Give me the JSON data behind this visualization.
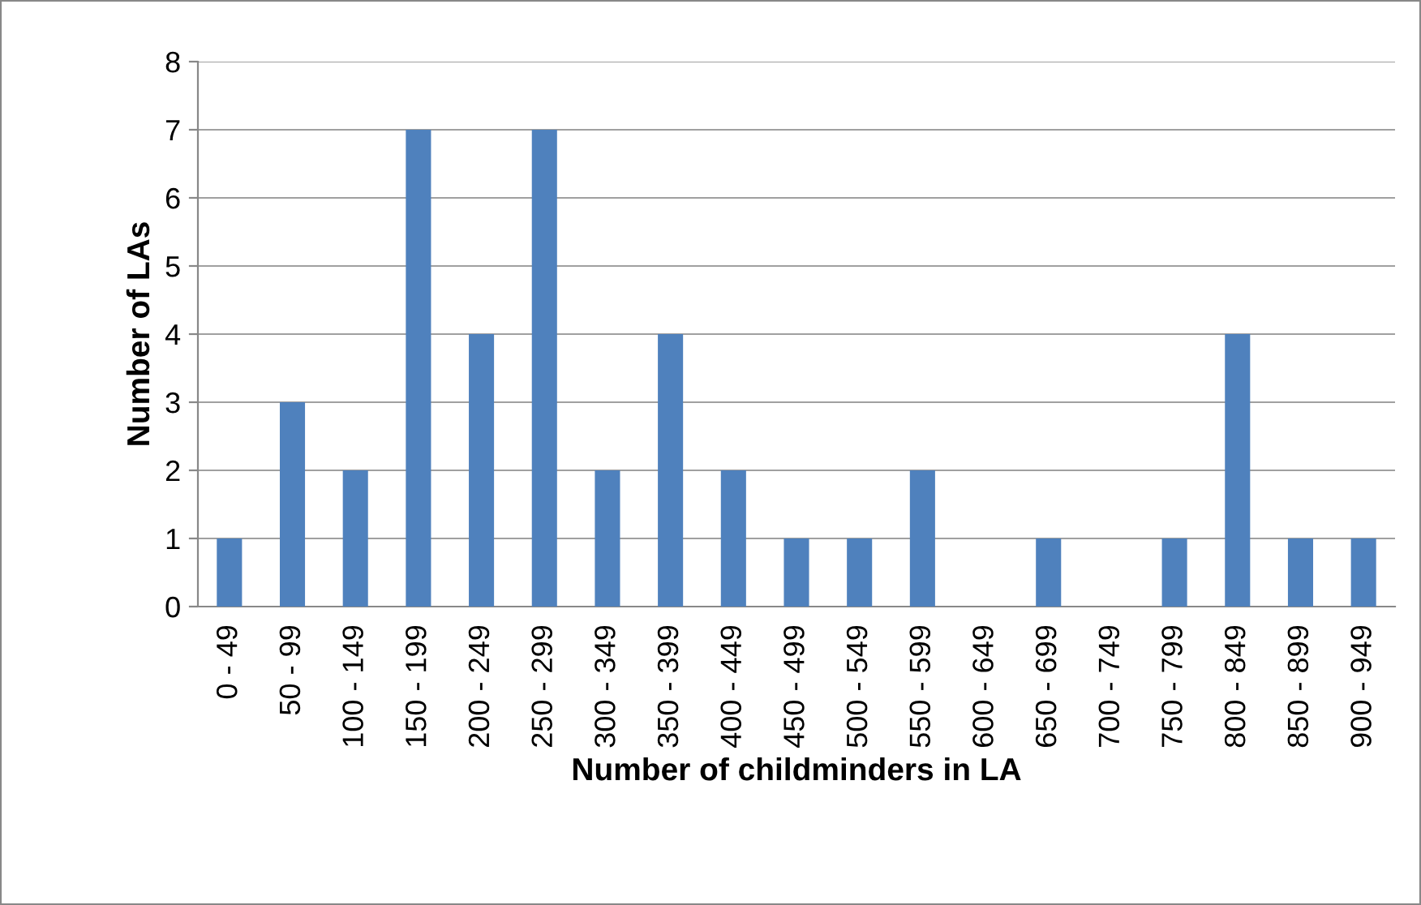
{
  "chart_data": {
    "type": "bar",
    "xlabel": "Number of childminders in LA",
    "ylabel": "Number of LAs",
    "categories": [
      "0 - 49",
      "50 - 99",
      "100 - 149",
      "150 - 199",
      "200 - 249",
      "250 - 299",
      "300 - 349",
      "350 - 399",
      "400 - 449",
      "450 - 499",
      "500 - 549",
      "550 - 599",
      "600 - 649",
      "650 - 699",
      "700 - 749",
      "750 - 799",
      "800 - 849",
      "850 - 899",
      "900 - 949"
    ],
    "values": [
      1,
      3,
      2,
      7,
      4,
      7,
      2,
      4,
      2,
      1,
      1,
      2,
      0,
      1,
      0,
      1,
      4,
      1,
      1
    ],
    "color": "#4f81bd",
    "ylim": [
      0,
      8
    ],
    "yticks": [
      0,
      1,
      2,
      3,
      4,
      5,
      6,
      7,
      8
    ],
    "grid": "y",
    "legend": false
  }
}
